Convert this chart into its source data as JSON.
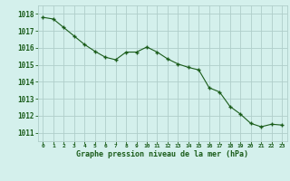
{
  "x": [
    0,
    1,
    2,
    3,
    4,
    5,
    6,
    7,
    8,
    9,
    10,
    11,
    12,
    13,
    14,
    15,
    16,
    17,
    18,
    19,
    20,
    21,
    22,
    23
  ],
  "y": [
    1017.8,
    1017.7,
    1017.2,
    1016.7,
    1016.2,
    1015.8,
    1015.45,
    1015.3,
    1015.75,
    1015.75,
    1016.05,
    1015.75,
    1015.35,
    1015.05,
    1014.85,
    1014.7,
    1013.65,
    1013.4,
    1012.55,
    1012.1,
    1011.55,
    1011.35,
    1011.5,
    1011.45
  ],
  "line_color": "#1a5c1a",
  "marker": "+",
  "background_color": "#d4f0ec",
  "grid_color": "#b0ceca",
  "xlabel": "Graphe pression niveau de la mer (hPa)",
  "xlabel_color": "#1a5c1a",
  "tick_color": "#1a5c1a",
  "ylim_min": 1010.5,
  "ylim_max": 1018.5,
  "fig_bg": "#d4f0ec"
}
